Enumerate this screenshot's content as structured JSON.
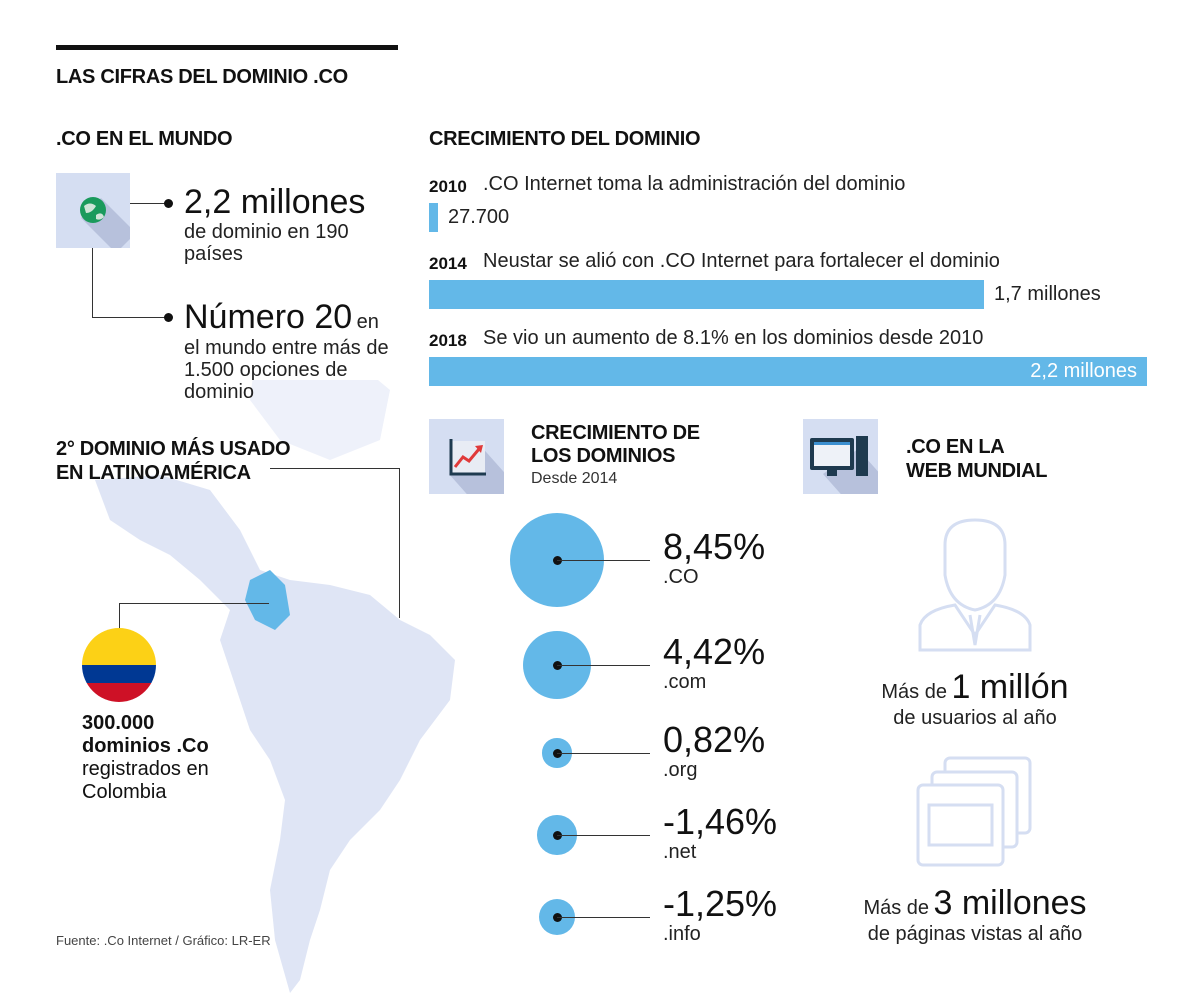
{
  "title": "LAS CIFRAS DEL DOMINIO .CO",
  "world": {
    "heading": ".CO EN EL MUNDO",
    "icon": "globe-icon",
    "stat1_big": "2,2 millones",
    "stat1_text": "de dominio en 190 países",
    "stat2_big": "Número 20",
    "stat2_suffix": "en",
    "stat2_text": "el mundo entre más de 1.500 opciones de dominio"
  },
  "latam": {
    "heading_line1": "2° DOMINIO MÁS USADO",
    "heading_line2": "EN LATINOAMÉRICA",
    "stat_bold1": "300.000",
    "stat_bold2": "dominios .Co",
    "stat_text1": "registrados en",
    "stat_text2": "Colombia",
    "flag_colors": [
      "#fcd116",
      "#003893",
      "#ce1126"
    ]
  },
  "source": "Fuente: .Co Internet / Gráfico: LR-ER",
  "web": {
    "heading_line1": ".CO EN LA",
    "heading_line2": "WEB MUNDIAL",
    "icon": "computer-icon",
    "users_prefix": "Más de",
    "users_big": "1 millón",
    "users_text": "de usuarios al año",
    "pages_prefix": "Más de",
    "pages_big": "3 millones",
    "pages_text": "de páginas vistas al año"
  },
  "colors": {
    "accent": "#63b8e8",
    "panel": "#d5def2",
    "map": "#dfe5f5"
  },
  "chart_data": [
    {
      "type": "bar",
      "title": "CRECIMIENTO DEL DOMINIO",
      "categories": [
        "2010",
        "2014",
        "2018"
      ],
      "descriptions": [
        ".CO Internet toma la administración del dominio",
        "Neustar se alió con .CO Internet para fortalecer el dominio",
        "Se vio un aumento de 8.1% en los dominios desde 2010"
      ],
      "values": [
        27700,
        1700000,
        2200000
      ],
      "labels": [
        "27.700",
        "1,7 millones",
        "2,2 millones"
      ]
    },
    {
      "type": "bubble",
      "title_line1": "CRECIMIENTO DE",
      "title_line2": "LOS DOMINIOS",
      "subtitle": "Desde 2014",
      "icon": "growth-chart-icon",
      "categories": [
        ".CO",
        ".com",
        ".org",
        ".net",
        ".info"
      ],
      "values": [
        8.45,
        4.42,
        0.82,
        -1.46,
        -1.25
      ],
      "labels": [
        "8,45%",
        "4,42%",
        "0,82%",
        "-1,46%",
        "-1,25%"
      ]
    }
  ]
}
